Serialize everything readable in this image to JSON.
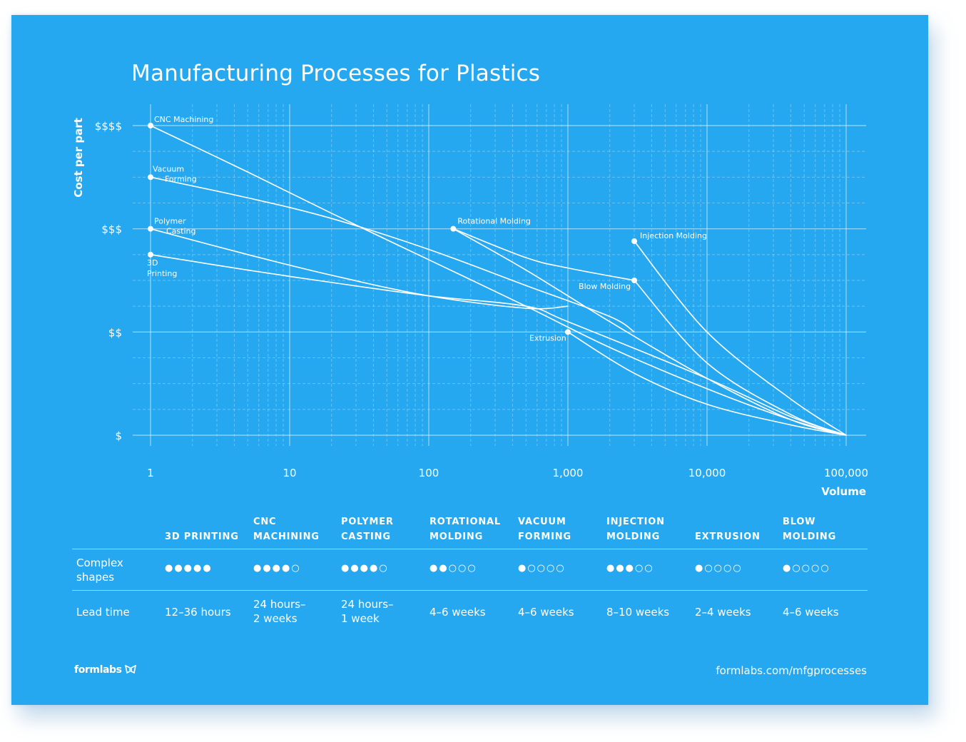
{
  "page": {
    "title": "Manufacturing Processes for Plastics"
  },
  "chart_data": {
    "type": "line",
    "title": "Manufacturing Processes for Plastics",
    "xlabel": "Volume",
    "ylabel": "Cost per part",
    "x_scale": "log",
    "xlim": [
      1,
      100000
    ],
    "x_ticks": [
      {
        "value": 1,
        "label": "1"
      },
      {
        "value": 10,
        "label": "10"
      },
      {
        "value": 100,
        "label": "100"
      },
      {
        "value": 1000,
        "label": "1,000"
      },
      {
        "value": 10000,
        "label": "10,000"
      },
      {
        "value": 100000,
        "label": "100,000"
      }
    ],
    "ylim": [
      1,
      4
    ],
    "y_ticks": [
      {
        "value": 1,
        "label": "$"
      },
      {
        "value": 2,
        "label": "$$"
      },
      {
        "value": 3,
        "label": "$$$"
      },
      {
        "value": 4,
        "label": "$$$$"
      }
    ],
    "grid": true,
    "series": [
      {
        "name": "CNC Machining",
        "points": [
          [
            1,
            4.0
          ],
          [
            5,
            3.55
          ],
          [
            20,
            3.15
          ],
          [
            100,
            2.7
          ],
          [
            500,
            2.25
          ],
          [
            2000,
            1.85
          ],
          [
            10000,
            1.45
          ],
          [
            40000,
            1.15
          ],
          [
            100000,
            1.0
          ]
        ]
      },
      {
        "name": "Vacuum Forming",
        "points": [
          [
            1,
            3.5
          ],
          [
            5,
            3.3
          ],
          [
            20,
            3.1
          ],
          [
            100,
            2.8
          ],
          [
            500,
            2.45
          ],
          [
            2000,
            2.15
          ],
          [
            3000,
            2.0
          ]
        ]
      },
      {
        "name": "Polymer Casting",
        "points": [
          [
            1,
            3.0
          ],
          [
            5,
            2.75
          ],
          [
            20,
            2.55
          ],
          [
            100,
            2.35
          ],
          [
            500,
            2.23
          ],
          [
            1000,
            2.25
          ]
        ]
      },
      {
        "name": "3D Printing",
        "points": [
          [
            1,
            2.75
          ],
          [
            5,
            2.6
          ],
          [
            20,
            2.48
          ],
          [
            100,
            2.35
          ],
          [
            500,
            2.25
          ],
          [
            1000,
            2.1
          ],
          [
            10000,
            1.55
          ],
          [
            40000,
            1.18
          ],
          [
            100000,
            1.0
          ]
        ]
      },
      {
        "name": "Rotational Molding",
        "points": [
          [
            150,
            3.0
          ],
          [
            500,
            2.6
          ],
          [
            2000,
            2.1
          ],
          [
            10000,
            1.55
          ],
          [
            40000,
            1.15
          ],
          [
            100000,
            1.0
          ]
        ]
      },
      {
        "name": "Blow Molding",
        "points": [
          [
            150,
            3.0
          ],
          [
            500,
            2.72
          ],
          [
            1000,
            2.62
          ],
          [
            3000,
            2.5
          ]
        ]
      },
      {
        "name": "Extrusion",
        "points": [
          [
            1000,
            2.0
          ],
          [
            3000,
            1.6
          ],
          [
            10000,
            1.3
          ],
          [
            40000,
            1.1
          ],
          [
            100000,
            1.0
          ]
        ]
      },
      {
        "name": "Injection Molding",
        "points": [
          [
            3000,
            2.88
          ],
          [
            10000,
            2.0
          ],
          [
            40000,
            1.35
          ],
          [
            100000,
            1.0
          ]
        ]
      },
      {
        "name": "Blow Molding",
        "points": [
          [
            3000,
            2.5
          ],
          [
            10000,
            1.7
          ],
          [
            40000,
            1.2
          ],
          [
            100000,
            1.0
          ]
        ]
      }
    ],
    "markers": [
      {
        "label": "CNC Machining",
        "x": 1,
        "y": 4.0
      },
      {
        "label": "Vacuum Forming",
        "x": 1,
        "y": 3.5
      },
      {
        "label": "Polymer Casting",
        "x": 1,
        "y": 3.0
      },
      {
        "label": "3D Printing",
        "x": 1,
        "y": 2.75
      },
      {
        "label": "Rotational Molding",
        "x": 150,
        "y": 3.0
      },
      {
        "label": "Injection Molding",
        "x": 3000,
        "y": 2.88
      },
      {
        "label": "Blow Molding",
        "x": 3000,
        "y": 2.5
      },
      {
        "label": "Extrusion",
        "x": 1000,
        "y": 2.0
      }
    ]
  },
  "table": {
    "columns": [
      {
        "lines": [
          "",
          "3D PRINTING"
        ]
      },
      {
        "lines": [
          "CNC",
          "MACHINING"
        ]
      },
      {
        "lines": [
          "POLYMER",
          "CASTING"
        ]
      },
      {
        "lines": [
          "ROTATIONAL",
          "MOLDING"
        ]
      },
      {
        "lines": [
          "VACUUM",
          "FORMING"
        ]
      },
      {
        "lines": [
          "INJECTION",
          "MOLDING"
        ]
      },
      {
        "lines": [
          "",
          "EXTRUSION"
        ]
      },
      {
        "lines": [
          "BLOW",
          "MOLDING"
        ]
      }
    ],
    "rows": [
      {
        "label": [
          "Complex",
          "shapes"
        ],
        "type": "rating",
        "values": [
          5,
          4,
          4,
          2,
          1,
          3,
          1,
          1
        ],
        "max": 5
      },
      {
        "label": [
          "Lead time"
        ],
        "type": "text",
        "values": [
          [
            "12–36 hours"
          ],
          [
            "24 hours–",
            "2 weeks"
          ],
          [
            "24 hours–",
            "1 week"
          ],
          [
            "4–6 weeks"
          ],
          [
            "4–6 weeks"
          ],
          [
            "8–10 weeks"
          ],
          [
            "2–4 weeks"
          ],
          [
            "4–6 weeks"
          ]
        ]
      }
    ]
  },
  "footer": {
    "logo": "formlabs",
    "url": "formlabs.com/mfgprocesses"
  },
  "colors": {
    "background": "#26a8f0",
    "foreground": "#ffffff"
  }
}
